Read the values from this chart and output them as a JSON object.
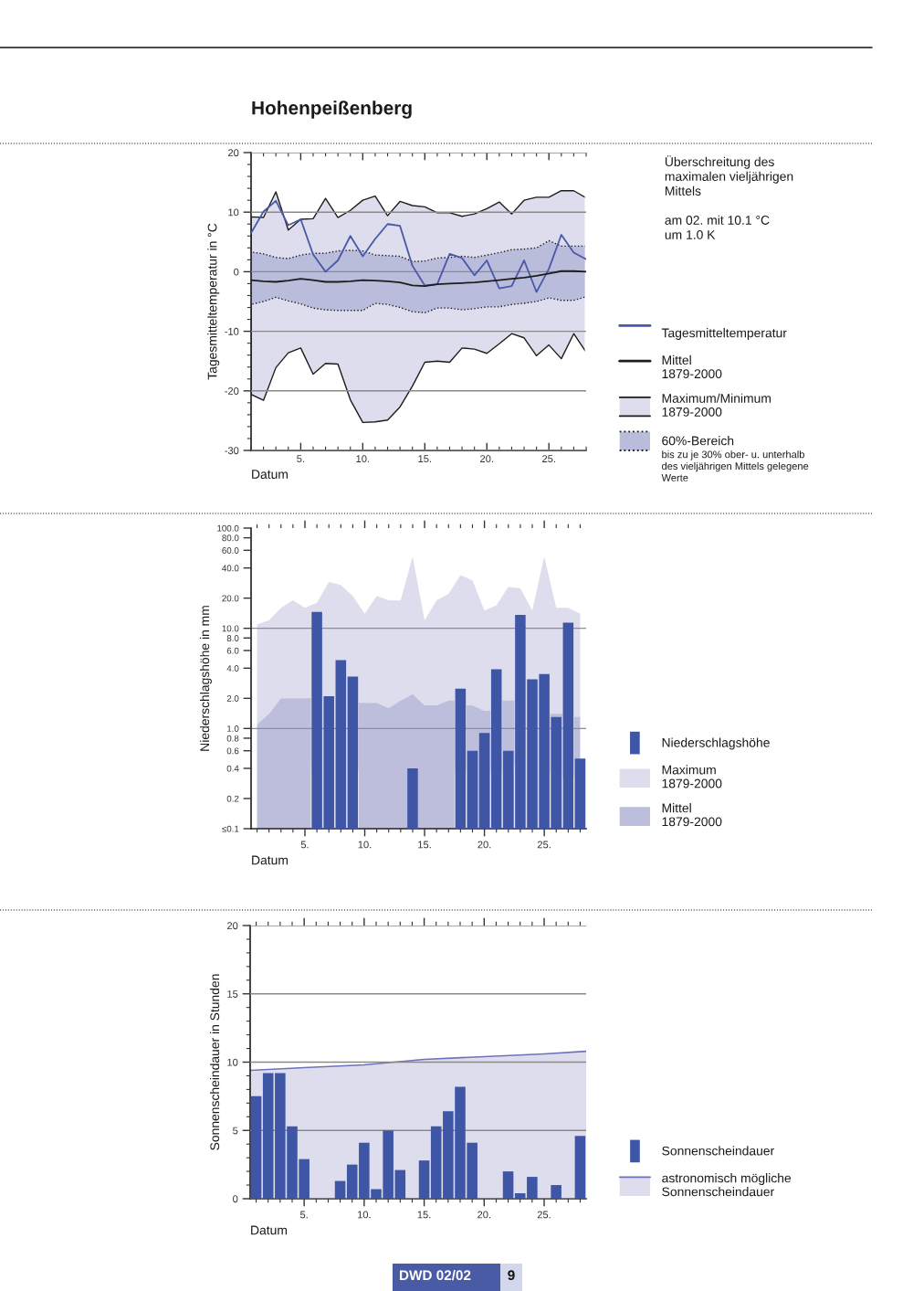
{
  "chart_data": [
    {
      "type": "line",
      "title": "Hohenpeißenberg",
      "xlabel": "Datum",
      "ylabel": "Tagesmitteltemperatur in °C",
      "legend": "bottom right",
      "grid": "y",
      "x": [
        1,
        2,
        3,
        4,
        5,
        6,
        7,
        8,
        9,
        10,
        11,
        12,
        13,
        14,
        15,
        16,
        17,
        18,
        19,
        20,
        21,
        22,
        23,
        24,
        25,
        26,
        27,
        28
      ],
      "xlim": [
        1,
        28
      ],
      "xticks": [
        {
          "value": 1,
          "label": null
        },
        {
          "value": 2,
          "label": null
        },
        {
          "value": 3,
          "label": null
        },
        {
          "value": 4,
          "label": null
        },
        {
          "value": 5,
          "label": "5."
        },
        {
          "value": 6,
          "label": null
        },
        {
          "value": 7,
          "label": null
        },
        {
          "value": 8,
          "label": null
        },
        {
          "value": 9,
          "label": null
        },
        {
          "value": 10,
          "label": "10."
        },
        {
          "value": 11,
          "label": null
        },
        {
          "value": 12,
          "label": null
        },
        {
          "value": 13,
          "label": null
        },
        {
          "value": 14,
          "label": null
        },
        {
          "value": 15,
          "label": "15."
        },
        {
          "value": 16,
          "label": null
        },
        {
          "value": 17,
          "label": null
        },
        {
          "value": 18,
          "label": null
        },
        {
          "value": 19,
          "label": null
        },
        {
          "value": 20,
          "label": "20."
        },
        {
          "value": 21,
          "label": null
        },
        {
          "value": 22,
          "label": null
        },
        {
          "value": 23,
          "label": null
        },
        {
          "value": 24,
          "label": null
        },
        {
          "value": 25,
          "label": "25."
        },
        {
          "value": 26,
          "label": null
        },
        {
          "value": 27,
          "label": null
        },
        {
          "value": 28,
          "label": null
        }
      ],
      "ylim": [
        -30,
        20
      ],
      "yticks": [
        -30,
        {
          "value": -28,
          "label": null
        },
        {
          "value": -26,
          "label": null
        },
        {
          "value": -24,
          "label": null
        },
        {
          "value": -22,
          "label": null
        },
        -20,
        {
          "value": -18,
          "label": null
        },
        {
          "value": -16,
          "label": null
        },
        {
          "value": -14,
          "label": null
        },
        {
          "value": -12,
          "label": null
        },
        -10,
        {
          "value": -8,
          "label": null
        },
        {
          "value": -6,
          "label": null
        },
        {
          "value": -4,
          "label": null
        },
        {
          "value": -2,
          "label": null
        },
        0,
        {
          "value": 2,
          "label": null
        },
        {
          "value": 4,
          "label": null
        },
        {
          "value": 6,
          "label": null
        },
        {
          "value": 8,
          "label": null
        },
        10,
        {
          "value": 12,
          "label": null
        },
        {
          "value": 14,
          "label": null
        },
        {
          "value": 16,
          "label": null
        },
        {
          "value": 18,
          "label": null
        },
        20
      ],
      "annotations": [
        "Überschreitung des\nmaximalen vieljährigen\nMittels\n\nam 02. mit 10.1 °C\num 1.0 K",
        "bis zu je 30% ober- u. unterhalb\ndes vieljährigen Mittels gelegene\nWerte"
      ],
      "series": [
        {
          "name": "Tagesmitteltemperatur",
          "color": "#4a58a8",
          "values": [
            6.5,
            10.1,
            11.9,
            7.8,
            8.8,
            2.9,
            0.0,
            1.9,
            6.0,
            2.6,
            5.5,
            8.0,
            7.7,
            1.0,
            -2.3,
            -2.1,
            3.0,
            2.3,
            -0.6,
            1.9,
            -2.8,
            -2.4,
            1.9,
            -3.4,
            0.5,
            6.2,
            3.2,
            2.1
          ]
        },
        {
          "name": "Mittel\n1879-2000",
          "color": "#1c1c1c",
          "values": [
            -1.4,
            -1.6,
            -1.7,
            -1.5,
            -1.2,
            -1.4,
            -1.7,
            -1.7,
            -1.6,
            -1.4,
            -1.5,
            -1.6,
            -1.8,
            -2.3,
            -2.4,
            -2.1,
            -2.0,
            -1.9,
            -1.8,
            -1.6,
            -1.4,
            -1.2,
            -1.0,
            -0.7,
            -0.3,
            0.1,
            0.1,
            0.0
          ]
        },
        {
          "name": "Maximum/Minimum\n1879-2000",
          "color": "#dddded",
          "values": [
            null,
            null,
            null,
            null,
            null,
            null,
            null,
            null,
            null,
            null,
            null,
            null,
            null,
            null,
            null,
            null,
            null,
            null,
            null,
            null,
            null,
            null,
            null,
            null,
            null,
            null,
            null,
            null
          ],
          "lower": [
            -20.6,
            -21.6,
            -16.1,
            -13.6,
            -12.8,
            -17.2,
            -15.4,
            -15.5,
            -21.5,
            -25.3,
            -25.2,
            -24.9,
            -22.7,
            -19.2,
            -15.2,
            -15.0,
            -15.2,
            -12.8,
            -13.0,
            -13.7,
            -12.1,
            -10.4,
            -11.1,
            -14.1,
            -12.3,
            -14.6,
            -10.4,
            -13.5
          ],
          "upper": [
            9.2,
            9.1,
            13.4,
            7.0,
            8.8,
            8.9,
            12.3,
            9.1,
            10.3,
            12.0,
            12.7,
            9.4,
            11.8,
            11.1,
            10.9,
            9.9,
            9.9,
            9.3,
            9.7,
            10.6,
            11.7,
            9.7,
            12.0,
            12.5,
            12.5,
            13.6,
            13.6,
            12.4
          ]
        },
        {
          "name": "60%-Bereich",
          "color": "#babcdb",
          "line_style": "dotted",
          "values": [
            null,
            null,
            null,
            null,
            null,
            null,
            null,
            null,
            null,
            null,
            null,
            null,
            null,
            null,
            null,
            null,
            null,
            null,
            null,
            null,
            null,
            null,
            null,
            null,
            null,
            null,
            null,
            null
          ],
          "lower": [
            -5.5,
            -5.0,
            -4.3,
            -4.9,
            -5.4,
            -6.1,
            -6.4,
            -6.5,
            -6.5,
            -6.5,
            -5.3,
            -5.5,
            -6.0,
            -6.7,
            -6.9,
            -6.1,
            -6.1,
            -6.4,
            -6.2,
            -5.9,
            -5.9,
            -5.5,
            -5.3,
            -5.0,
            -4.4,
            -4.8,
            -4.8,
            -4.2
          ],
          "upper": [
            3.3,
            3.0,
            2.4,
            2.2,
            2.8,
            3.1,
            3.1,
            3.5,
            3.6,
            3.5,
            2.8,
            2.7,
            2.6,
            1.7,
            1.8,
            2.3,
            2.4,
            2.6,
            2.4,
            2.8,
            3.2,
            3.7,
            3.8,
            4.0,
            5.2,
            4.3,
            4.3,
            4.3
          ]
        }
      ]
    },
    {
      "type": "bar",
      "xlabel": "Datum",
      "ylabel": "Niederschlagshöhe in mm",
      "legend": "bottom right",
      "log": true,
      "x": [
        1,
        2,
        3,
        4,
        5,
        6,
        7,
        8,
        9,
        10,
        11,
        12,
        13,
        14,
        15,
        16,
        17,
        18,
        19,
        20,
        21,
        22,
        23,
        24,
        25,
        26,
        27,
        28
      ],
      "xlim": [
        0.5,
        28.5
      ],
      "xticks": [
        {
          "value": 1,
          "label": null
        },
        {
          "value": 2,
          "label": null
        },
        {
          "value": 3,
          "label": null
        },
        {
          "value": 4,
          "label": null
        },
        {
          "value": 5,
          "label": "5."
        },
        {
          "value": 6,
          "label": null
        },
        {
          "value": 7,
          "label": null
        },
        {
          "value": 8,
          "label": null
        },
        {
          "value": 9,
          "label": null
        },
        {
          "value": 10,
          "label": "10."
        },
        {
          "value": 11,
          "label": null
        },
        {
          "value": 12,
          "label": null
        },
        {
          "value": 13,
          "label": null
        },
        {
          "value": 14,
          "label": null
        },
        {
          "value": 15,
          "label": "15."
        },
        {
          "value": 16,
          "label": null
        },
        {
          "value": 17,
          "label": null
        },
        {
          "value": 18,
          "label": null
        },
        {
          "value": 19,
          "label": null
        },
        {
          "value": 20,
          "label": "20."
        },
        {
          "value": 21,
          "label": null
        },
        {
          "value": 22,
          "label": null
        },
        {
          "value": 23,
          "label": null
        },
        {
          "value": 24,
          "label": null
        },
        {
          "value": 25,
          "label": "25."
        },
        {
          "value": 26,
          "label": null
        },
        {
          "value": 27,
          "label": null
        },
        {
          "value": 28,
          "label": null
        }
      ],
      "ylim": [
        0.1,
        100
      ],
      "yticks": [
        {
          "value": 0.1,
          "label": "≤0.1"
        },
        {
          "value": 0.2,
          "label": "0.2"
        },
        {
          "value": 0.4,
          "label": "0.4"
        },
        {
          "value": 0.6,
          "label": "0.6"
        },
        {
          "value": 0.8,
          "label": "0.8"
        },
        {
          "value": 1,
          "label": "1.0"
        },
        {
          "value": 2,
          "label": "2.0"
        },
        {
          "value": 4,
          "label": "4.0"
        },
        {
          "value": 6,
          "label": "6.0"
        },
        {
          "value": 8,
          "label": "8.0"
        },
        {
          "value": 10,
          "label": "10.0"
        },
        {
          "value": 20,
          "label": "20.0"
        },
        {
          "value": 40,
          "label": "40.0"
        },
        {
          "value": 60,
          "label": "60.0"
        },
        {
          "value": 80,
          "label": "80.0"
        },
        {
          "value": 100,
          "label": "100.0"
        }
      ],
      "ref_lines": [
        {
          "axis": "y",
          "value": 10,
          "color": "#8c8c9a"
        },
        {
          "axis": "y",
          "value": 1,
          "color": "#8c8c9a"
        }
      ],
      "series": [
        {
          "name": "Niederschlagshöhe",
          "color": "#3f56a6",
          "values": [
            null,
            null,
            null,
            null,
            null,
            14.6,
            2.1,
            4.8,
            3.3,
            null,
            null,
            null,
            null,
            0.4,
            null,
            null,
            null,
            2.5,
            0.6,
            0.9,
            3.9,
            0.6,
            13.6,
            3.1,
            3.5,
            1.3,
            11.4,
            0.5
          ]
        },
        {
          "name": "Maximum\n1879-2000",
          "type": "area",
          "color": "#dddded",
          "values": [
            11,
            12,
            16,
            19,
            16,
            18,
            29,
            27,
            21,
            14,
            21,
            19,
            19,
            52,
            12,
            19,
            22,
            34,
            30,
            15,
            17,
            26,
            25,
            15,
            52,
            16,
            16,
            14
          ]
        },
        {
          "name": "Mittel\n1879-2000",
          "type": "area",
          "color": "#bcbedc",
          "values": [
            1.1,
            1.4,
            2.0,
            2.0,
            2.0,
            null,
            null,
            null,
            null,
            1.8,
            1.8,
            1.6,
            1.9,
            2.2,
            1.7,
            1.7,
            1.9,
            null,
            1.7,
            1.5,
            null,
            1.9,
            null,
            null,
            null,
            1.4,
            null,
            1.3
          ]
        }
      ]
    },
    {
      "type": "bar",
      "xlabel": "Datum",
      "ylabel": "Sonnenscheindauer in Stunden",
      "legend": "bottom right",
      "grid": "y",
      "x": [
        1,
        2,
        3,
        4,
        5,
        6,
        7,
        8,
        9,
        10,
        11,
        12,
        13,
        14,
        15,
        16,
        17,
        18,
        19,
        20,
        21,
        22,
        23,
        24,
        25,
        26,
        27,
        28
      ],
      "xlim": [
        0.5,
        28.5
      ],
      "xticks": [
        {
          "value": 1,
          "label": null
        },
        {
          "value": 2,
          "label": null
        },
        {
          "value": 3,
          "label": null
        },
        {
          "value": 4,
          "label": null
        },
        {
          "value": 5,
          "label": "5."
        },
        {
          "value": 6,
          "label": null
        },
        {
          "value": 7,
          "label": null
        },
        {
          "value": 8,
          "label": null
        },
        {
          "value": 9,
          "label": null
        },
        {
          "value": 10,
          "label": "10."
        },
        {
          "value": 11,
          "label": null
        },
        {
          "value": 12,
          "label": null
        },
        {
          "value": 13,
          "label": null
        },
        {
          "value": 14,
          "label": null
        },
        {
          "value": 15,
          "label": "15."
        },
        {
          "value": 16,
          "label": null
        },
        {
          "value": 17,
          "label": null
        },
        {
          "value": 18,
          "label": null
        },
        {
          "value": 19,
          "label": null
        },
        {
          "value": 20,
          "label": "20."
        },
        {
          "value": 21,
          "label": null
        },
        {
          "value": 22,
          "label": null
        },
        {
          "value": 23,
          "label": null
        },
        {
          "value": 24,
          "label": null
        },
        {
          "value": 25,
          "label": "25."
        },
        {
          "value": 26,
          "label": null
        },
        {
          "value": 27,
          "label": null
        },
        {
          "value": 28,
          "label": null
        }
      ],
      "ylim": [
        0,
        20
      ],
      "yticks": [
        0,
        {
          "value": 1,
          "label": null
        },
        {
          "value": 2,
          "label": null
        },
        {
          "value": 3,
          "label": null
        },
        {
          "value": 4,
          "label": null
        },
        5,
        {
          "value": 6,
          "label": null
        },
        {
          "value": 7,
          "label": null
        },
        {
          "value": 8,
          "label": null
        },
        {
          "value": 9,
          "label": null
        },
        10,
        {
          "value": 11,
          "label": null
        },
        {
          "value": 12,
          "label": null
        },
        {
          "value": 13,
          "label": null
        },
        {
          "value": 14,
          "label": null
        },
        15,
        {
          "value": 16,
          "label": null
        },
        {
          "value": 17,
          "label": null
        },
        {
          "value": 18,
          "label": null
        },
        {
          "value": 19,
          "label": null
        },
        20
      ],
      "annotations": [
        "DWD 02/02",
        "9"
      ],
      "series": [
        {
          "name": "Sonnenscheindauer",
          "color": "#3f56a6",
          "values": [
            7.5,
            9.2,
            9.2,
            5.3,
            2.9,
            0,
            0,
            1.3,
            2.5,
            4.1,
            0.7,
            5.0,
            2.1,
            0,
            2.8,
            5.3,
            6.4,
            8.2,
            4.1,
            0,
            0,
            2.0,
            0.4,
            1.6,
            0,
            1.0,
            0,
            4.6
          ]
        },
        {
          "name": "astronomisch mögliche\nSonnenscheindauer",
          "type": "area",
          "color": "#dddded",
          "line_style": "solid",
          "x": [
            0.5,
            5,
            10,
            15,
            20,
            25,
            28.5
          ],
          "values": [
            9.4,
            9.6,
            9.8,
            10.2,
            10.4,
            10.6,
            10.8
          ]
        }
      ]
    }
  ]
}
